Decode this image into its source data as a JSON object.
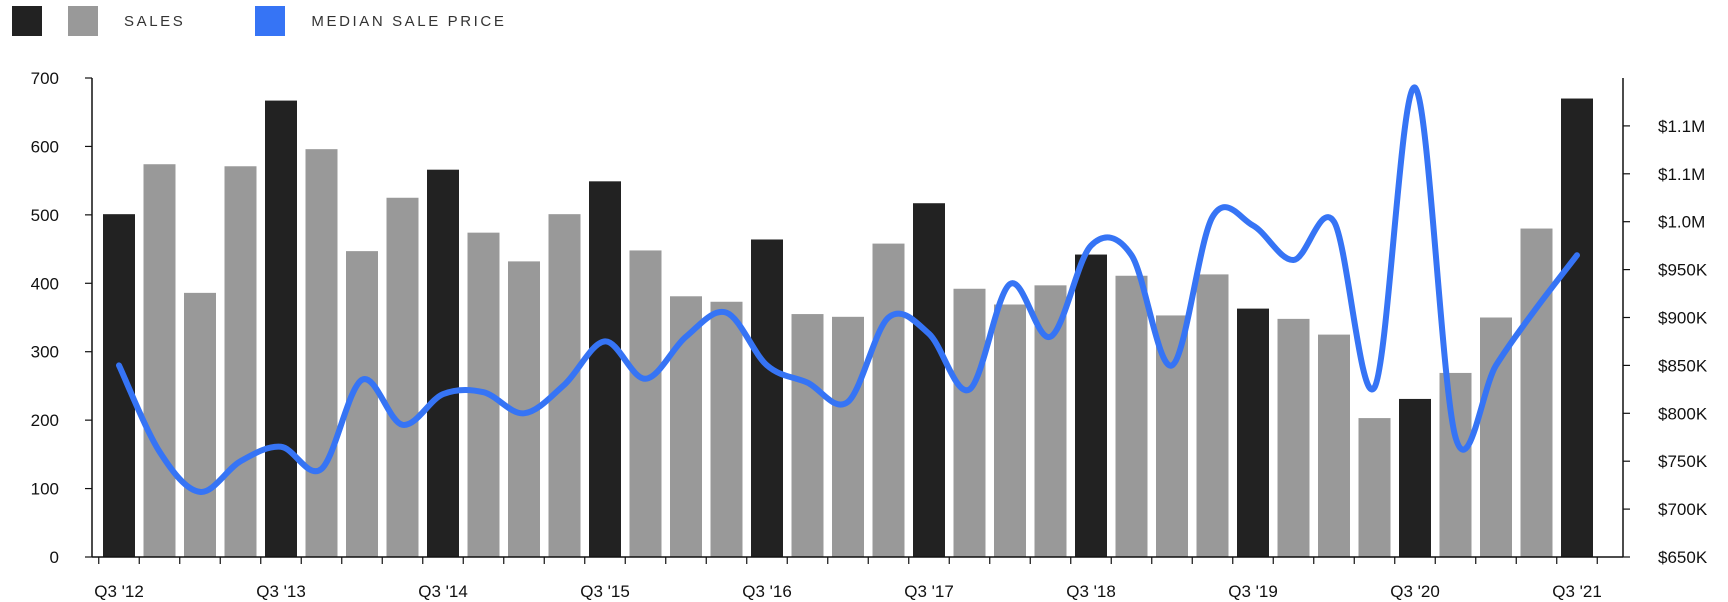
{
  "legend": {
    "items": [
      {
        "label": "SALES",
        "colors": [
          "#222222",
          "#999999"
        ]
      },
      {
        "label": "MEDIAN SALE PRICE",
        "colors": [
          "#3674f5"
        ]
      }
    ]
  },
  "colors": {
    "bar_highlight": "#222222",
    "bar_default": "#999999",
    "line": "#3674f5",
    "axis": "#111111"
  },
  "chart_data": {
    "type": "bar",
    "title": "",
    "xlabel": "",
    "ylabel": "",
    "categories": [
      "Q3 '12",
      "Q4 '12",
      "Q1 '13",
      "Q2 '13",
      "Q3 '13",
      "Q4 '13",
      "Q1 '14",
      "Q2 '14",
      "Q3 '14",
      "Q4 '14",
      "Q1 '15",
      "Q2 '15",
      "Q3 '15",
      "Q4 '15",
      "Q1 '16",
      "Q2 '16",
      "Q3 '16",
      "Q4 '16",
      "Q1 '17",
      "Q2 '17",
      "Q3 '17",
      "Q4 '17",
      "Q1 '18",
      "Q2 '18",
      "Q3 '18",
      "Q4 '18",
      "Q1 '19",
      "Q2 '19",
      "Q3 '19",
      "Q4 '19",
      "Q1 '20",
      "Q2 '20",
      "Q3 '20",
      "Q4 '20",
      "Q1 '21",
      "Q2 '21",
      "Q3 '21"
    ],
    "x_tick_labels": [
      "Q3 '12",
      "Q3 '13",
      "Q3 '14",
      "Q3 '15",
      "Q3 '16",
      "Q3 '17",
      "Q3 '18",
      "Q3 '19",
      "Q3 '20",
      "Q3 '21"
    ],
    "series": [
      {
        "name": "SALES",
        "type": "bar",
        "axis": "left",
        "values": [
          501,
          574,
          386,
          571,
          667,
          596,
          447,
          525,
          566,
          474,
          432,
          501,
          549,
          448,
          381,
          373,
          464,
          355,
          351,
          458,
          517,
          392,
          369,
          397,
          442,
          411,
          353,
          413,
          363,
          348,
          325,
          203,
          231,
          269,
          350,
          480,
          670
        ],
        "highlight_every": 4
      },
      {
        "name": "MEDIAN SALE PRICE",
        "type": "line",
        "axis": "right",
        "values": [
          850000,
          760000,
          718000,
          750000,
          765000,
          742000,
          835000,
          788000,
          820000,
          822000,
          800000,
          830000,
          875000,
          836000,
          880000,
          905000,
          850000,
          832000,
          812000,
          900000,
          883000,
          825000,
          935000,
          880000,
          975000,
          965000,
          850000,
          1005000,
          996000,
          960000,
          1000000,
          827000,
          1140000,
          775000,
          850000,
          910000,
          965000
        ]
      }
    ],
    "y_left": {
      "lim": [
        0,
        700
      ],
      "ticks": [
        0,
        100,
        200,
        300,
        400,
        500,
        600,
        700
      ]
    },
    "y_right": {
      "lim": [
        650000,
        1150000
      ],
      "ticks": [
        650000,
        700000,
        750000,
        800000,
        850000,
        900000,
        950000,
        1000000,
        1050000,
        1100000
      ],
      "tick_labels": [
        "$650K",
        "$700K",
        "$750K",
        "$800K",
        "$850K",
        "$900K",
        "$950K",
        "$1.0M",
        "$1.1M",
        "$1.1M"
      ]
    },
    "grid": false,
    "legend_position": "top-left"
  }
}
